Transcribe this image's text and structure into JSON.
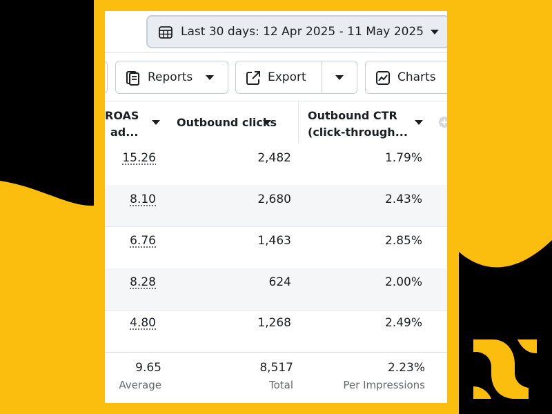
{
  "colors": {
    "brand_yellow": "#fbbd0e",
    "black": "#000000",
    "panel": "#ffffff",
    "alt_row": "#f5f6f7"
  },
  "date_range": {
    "label": "Last 30 days: 12 Apr 2025 - 11 May 2025"
  },
  "toolbar": {
    "reports_label": "Reports",
    "export_label": "Export",
    "charts_label": "Charts"
  },
  "table": {
    "columns": {
      "roas_line1": "ROAS",
      "roas_line2": "ad...",
      "outbound_clicks": "Outbound clicks",
      "outbound_ctr_line1": "Outbound CTR",
      "outbound_ctr_line2": "(click-through..."
    },
    "rows": [
      {
        "roas": "15.26",
        "clicks": "2,482",
        "ctr": "1.79%"
      },
      {
        "roas": "8.10",
        "clicks": "2,680",
        "ctr": "2.43%"
      },
      {
        "roas": "6.76",
        "clicks": "1,463",
        "ctr": "2.85%"
      },
      {
        "roas": "8.28",
        "clicks": "624",
        "ctr": "2.00%"
      },
      {
        "roas": "4.80",
        "clicks": "1,268",
        "ctr": "2.49%"
      }
    ],
    "summary": {
      "roas": "9.65",
      "roas_label": "Average",
      "clicks": "8,517",
      "clicks_label": "Total",
      "ctr": "2.23%",
      "ctr_label": "Per Impressions"
    }
  },
  "icons": [
    "calendar-icon",
    "caret-down-icon",
    "reports-icon",
    "export-icon",
    "charts-icon",
    "add-column-icon",
    "brand-logo"
  ]
}
